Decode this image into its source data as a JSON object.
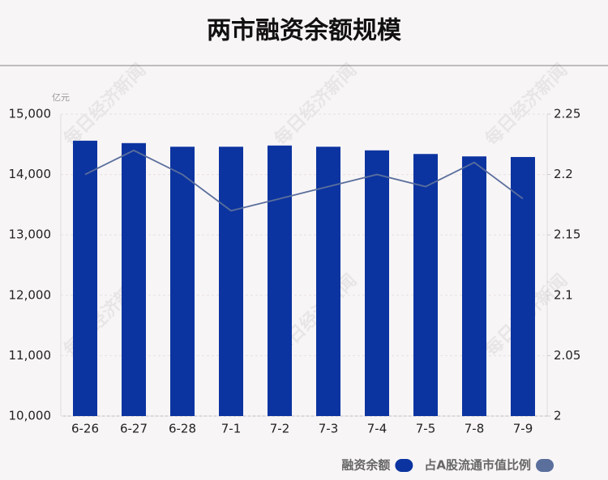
{
  "chart_data": {
    "type": "bar",
    "title": "两市融资余额规模",
    "unit_label": "亿元",
    "watermark": "每日经济新闻",
    "categories": [
      "6-26",
      "6-27",
      "6-28",
      "7-1",
      "7-2",
      "7-3",
      "7-4",
      "7-5",
      "7-8",
      "7-9"
    ],
    "series": [
      {
        "name": "融资余额",
        "color": "#0c34a0",
        "type": "bar",
        "values": [
          14560,
          14520,
          14460,
          14460,
          14480,
          14460,
          14400,
          14340,
          14300,
          14290
        ]
      },
      {
        "name": "占A股流通市值比例",
        "color": "#5a6f9c",
        "type": "line",
        "axis": "y2",
        "values": [
          2.2,
          2.22,
          2.2,
          2.17,
          2.18,
          2.19,
          2.2,
          2.19,
          2.21,
          2.18
        ]
      }
    ],
    "ylim": [
      10000,
      15000
    ],
    "yticks": [
      {
        "value": 10000,
        "label": "10,000"
      },
      {
        "value": 11000,
        "label": "11,000"
      },
      {
        "value": 12000,
        "label": "12,000"
      },
      {
        "value": 13000,
        "label": "13,000"
      },
      {
        "value": 14000,
        "label": "14,000"
      },
      {
        "value": 15000,
        "label": "15,000"
      }
    ],
    "y2lim": [
      2,
      2.25
    ],
    "y2ticks": [
      2,
      2.05,
      2.1,
      2.15,
      2.2,
      2.25
    ],
    "grid": true,
    "legend": "bottom-right"
  }
}
